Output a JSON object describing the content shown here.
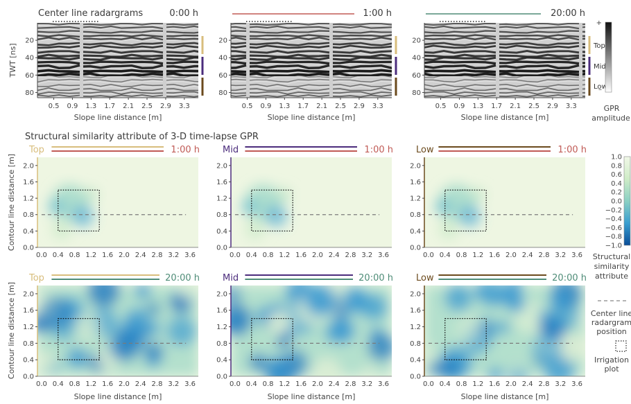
{
  "figure": {
    "top_heading": "Center line radargrams",
    "middle_heading": "Structural similarity attribute of 3-D time-lapse GPR",
    "x_label": "Slope line distance [m]",
    "y_label_radargram": "TWT [ns]",
    "y_label_ssim": "Contour line distance [m]",
    "legend_center_line": [
      "Center line",
      "radargram",
      "position"
    ],
    "legend_irrigation": [
      "Irrigation",
      "plot"
    ]
  },
  "colors": {
    "top": "#d8bd7c",
    "mid": "#4b2c7c",
    "low": "#6b4a1d",
    "time_1h": "#c05a55",
    "time_20h": "#4e8c77",
    "radargram_start": "#1f1f1f"
  },
  "chart_data": [
    {
      "type": "heatmap",
      "kind": "radargram",
      "time_label": "0:00 h",
      "x_ticks": [
        "0.5",
        "0.9",
        "1.3",
        "1.7",
        "2.1",
        "2.5",
        "2.9",
        "3.3"
      ],
      "y_ticks": [
        "20",
        "40",
        "60",
        "80"
      ],
      "depth_zones": []
    },
    {
      "type": "heatmap",
      "kind": "radargram",
      "time_label": "1:00 h",
      "x_ticks": [
        "0.5",
        "0.9",
        "1.3",
        "1.7",
        "2.1",
        "2.5",
        "2.9",
        "3.3"
      ],
      "y_ticks": [
        "20",
        "40",
        "60",
        "80"
      ],
      "depth_zones": []
    },
    {
      "type": "heatmap",
      "kind": "radargram",
      "time_label": "20:00 h",
      "x_ticks": [
        "0.5",
        "0.9",
        "1.3",
        "1.7",
        "2.1",
        "2.5",
        "2.9",
        "3.3"
      ],
      "y_ticks": [
        "20",
        "40",
        "60",
        "80"
      ],
      "depth_zones": [
        "Top",
        "Mid",
        "Low"
      ]
    },
    {
      "type": "heatmap",
      "kind": "ssim",
      "depth": "Top",
      "time_label": "1:00 h",
      "intensity": "low",
      "x_ticks": [
        "0.0",
        "0.4",
        "0.8",
        "1.2",
        "1.6",
        "2.0",
        "2.4",
        "2.8",
        "3.2",
        "3.6"
      ],
      "y_ticks": [
        "0.0",
        "0.4",
        "0.8",
        "1.2",
        "1.6",
        "2.0"
      ]
    },
    {
      "type": "heatmap",
      "kind": "ssim",
      "depth": "Mid",
      "time_label": "1:00 h",
      "intensity": "low",
      "x_ticks": [
        "0.0",
        "0.4",
        "0.8",
        "1.2",
        "1.6",
        "2.0",
        "2.4",
        "2.8",
        "3.2",
        "3.6"
      ],
      "y_ticks": [
        "0.0",
        "0.4",
        "0.8",
        "1.2",
        "1.6",
        "2.0"
      ]
    },
    {
      "type": "heatmap",
      "kind": "ssim",
      "depth": "Low",
      "time_label": "1:00 h",
      "intensity": "low",
      "x_ticks": [
        "0.0",
        "0.4",
        "0.8",
        "1.2",
        "1.6",
        "2.0",
        "2.4",
        "2.8",
        "3.2",
        "3.6"
      ],
      "y_ticks": [
        "0.0",
        "0.4",
        "0.8",
        "1.2",
        "1.6",
        "2.0"
      ]
    },
    {
      "type": "heatmap",
      "kind": "ssim",
      "depth": "Top",
      "time_label": "20:00 h",
      "intensity": "high",
      "x_ticks": [
        "0.0",
        "0.4",
        "0.8",
        "1.2",
        "1.6",
        "2.0",
        "2.4",
        "2.8",
        "3.2",
        "3.6"
      ],
      "y_ticks": [
        "0.0",
        "0.4",
        "0.8",
        "1.2",
        "1.6",
        "2.0"
      ]
    },
    {
      "type": "heatmap",
      "kind": "ssim",
      "depth": "Mid",
      "time_label": "20:00 h",
      "intensity": "high",
      "x_ticks": [
        "0.0",
        "0.4",
        "0.8",
        "1.2",
        "1.6",
        "2.0",
        "2.4",
        "2.8",
        "3.2",
        "3.6"
      ],
      "y_ticks": [
        "0.0",
        "0.4",
        "0.8",
        "1.2",
        "1.6",
        "2.0"
      ]
    },
    {
      "type": "heatmap",
      "kind": "ssim",
      "depth": "Low",
      "time_label": "20:00 h",
      "intensity": "high",
      "x_ticks": [
        "0.0",
        "0.4",
        "0.8",
        "1.2",
        "1.6",
        "2.0",
        "2.4",
        "2.8",
        "3.2",
        "3.6"
      ],
      "y_ticks": [
        "0.0",
        "0.4",
        "0.8",
        "1.2",
        "1.6",
        "2.0"
      ]
    },
    {
      "type": "colorbar",
      "kind": "gpr_amplitude",
      "top_label": "+",
      "bottom_label": "–",
      "title": [
        "GPR",
        "amplitude"
      ]
    },
    {
      "type": "colorbar",
      "kind": "ssim",
      "ticks": [
        "1.0",
        "0.8",
        "0.6",
        "0.4",
        "0.2",
        "0.0",
        "−0.2",
        "−0.4",
        "−0.6",
        "−0.8",
        "−1.0"
      ],
      "title": [
        "Structural",
        "similarity",
        "attribute"
      ]
    }
  ]
}
